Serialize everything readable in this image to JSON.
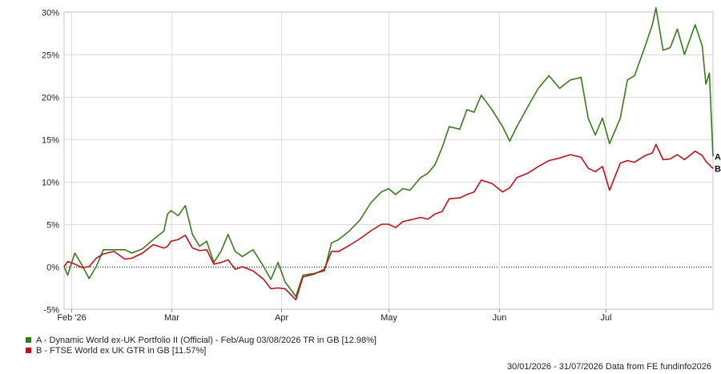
{
  "chart_data": {
    "type": "line",
    "y_unit": "%",
    "ylim": [
      -5,
      30
    ],
    "y_ticks": [
      -5,
      0,
      5,
      10,
      15,
      20,
      25,
      30
    ],
    "y_tick_labels": [
      "-5%",
      "0%",
      "5%",
      "10%",
      "15%",
      "20%",
      "25%",
      "30%"
    ],
    "x_ticks": [
      {
        "label": "Feb '26",
        "date": "2026-02-01"
      },
      {
        "label": "Mar",
        "date": "2026-03-01"
      },
      {
        "label": "Apr",
        "date": "2026-04-01"
      },
      {
        "label": "May",
        "date": "2026-05-01"
      },
      {
        "label": "Jun",
        "date": "2026-06-01"
      },
      {
        "label": "Jul",
        "date": "2026-07-01"
      }
    ],
    "x_range": [
      "2026-01-30",
      "2026-07-31"
    ],
    "grid": true,
    "zero_line": "dotted",
    "legend_placement": "bottom-left",
    "series": [
      {
        "name": "A - Dynamic World ex-UK Portfolio II (Official) - Feb/Aug 03/08/2026 TR in GB [12.98%]",
        "end_label": "A",
        "color": "#3a7a1e",
        "points": [
          [
            "2026-01-30",
            0.0
          ],
          [
            "2026-01-31",
            -1.0
          ],
          [
            "2026-02-02",
            1.6
          ],
          [
            "2026-02-04",
            0.2
          ],
          [
            "2026-02-06",
            -1.4
          ],
          [
            "2026-02-08",
            0.0
          ],
          [
            "2026-02-10",
            2.0
          ],
          [
            "2026-02-13",
            2.0
          ],
          [
            "2026-02-16",
            2.0
          ],
          [
            "2026-02-18",
            1.6
          ],
          [
            "2026-02-21",
            2.1
          ],
          [
            "2026-02-24",
            3.2
          ],
          [
            "2026-02-27",
            4.2
          ],
          [
            "2026-02-28",
            6.2
          ],
          [
            "2026-03-01",
            6.6
          ],
          [
            "2026-03-03",
            6.0
          ],
          [
            "2026-03-05",
            7.2
          ],
          [
            "2026-03-07",
            3.8
          ],
          [
            "2026-03-09",
            2.4
          ],
          [
            "2026-03-11",
            3.0
          ],
          [
            "2026-03-13",
            0.5
          ],
          [
            "2026-03-15",
            1.8
          ],
          [
            "2026-03-17",
            3.8
          ],
          [
            "2026-03-19",
            1.8
          ],
          [
            "2026-03-21",
            1.2
          ],
          [
            "2026-03-24",
            2.0
          ],
          [
            "2026-03-27",
            0.0
          ],
          [
            "2026-03-29",
            -1.5
          ],
          [
            "2026-03-31",
            0.5
          ],
          [
            "2026-04-02",
            -1.8
          ],
          [
            "2026-04-05",
            -3.5
          ],
          [
            "2026-04-07",
            -1.0
          ],
          [
            "2026-04-10",
            -0.8
          ],
          [
            "2026-04-13",
            -0.5
          ],
          [
            "2026-04-15",
            2.8
          ],
          [
            "2026-04-17",
            3.2
          ],
          [
            "2026-04-20",
            4.2
          ],
          [
            "2026-04-23",
            5.5
          ],
          [
            "2026-04-26",
            7.5
          ],
          [
            "2026-04-29",
            8.8
          ],
          [
            "2026-05-01",
            9.2
          ],
          [
            "2026-05-03",
            8.5
          ],
          [
            "2026-05-05",
            9.2
          ],
          [
            "2026-05-07",
            9.0
          ],
          [
            "2026-05-10",
            10.5
          ],
          [
            "2026-05-12",
            11.0
          ],
          [
            "2026-05-14",
            12.0
          ],
          [
            "2026-05-16",
            14.0
          ],
          [
            "2026-05-18",
            16.5
          ],
          [
            "2026-05-21",
            16.2
          ],
          [
            "2026-05-23",
            18.5
          ],
          [
            "2026-05-25",
            18.2
          ],
          [
            "2026-05-27",
            20.2
          ],
          [
            "2026-05-30",
            18.5
          ],
          [
            "2026-06-02",
            16.5
          ],
          [
            "2026-06-04",
            14.8
          ],
          [
            "2026-06-06",
            16.5
          ],
          [
            "2026-06-09",
            18.8
          ],
          [
            "2026-06-12",
            21.0
          ],
          [
            "2026-06-15",
            22.5
          ],
          [
            "2026-06-18",
            21.0
          ],
          [
            "2026-06-21",
            22.0
          ],
          [
            "2026-06-24",
            22.3
          ],
          [
            "2026-06-26",
            17.5
          ],
          [
            "2026-06-28",
            15.5
          ],
          [
            "2026-06-30",
            17.5
          ],
          [
            "2026-07-02",
            14.5
          ],
          [
            "2026-07-05",
            17.5
          ],
          [
            "2026-07-07",
            22.0
          ],
          [
            "2026-07-09",
            22.5
          ],
          [
            "2026-07-12",
            26.0
          ],
          [
            "2026-07-14",
            28.5
          ],
          [
            "2026-07-15",
            30.5
          ],
          [
            "2026-07-17",
            25.5
          ],
          [
            "2026-07-19",
            25.8
          ],
          [
            "2026-07-21",
            28.0
          ],
          [
            "2026-07-23",
            25.0
          ],
          [
            "2026-07-26",
            28.5
          ],
          [
            "2026-07-28",
            26.0
          ],
          [
            "2026-07-29",
            21.5
          ],
          [
            "2026-07-30",
            22.8
          ],
          [
            "2026-07-31",
            12.98
          ]
        ]
      },
      {
        "name": "B - FTSE World ex UK GTR in GB [11.57%]",
        "end_label": "B",
        "color": "#c0111b",
        "points": [
          [
            "2026-01-30",
            0.0
          ],
          [
            "2026-01-31",
            0.6
          ],
          [
            "2026-02-02",
            0.3
          ],
          [
            "2026-02-04",
            -0.1
          ],
          [
            "2026-02-06",
            0.0
          ],
          [
            "2026-02-08",
            1.0
          ],
          [
            "2026-02-10",
            1.5
          ],
          [
            "2026-02-13",
            1.8
          ],
          [
            "2026-02-16",
            0.9
          ],
          [
            "2026-02-18",
            1.0
          ],
          [
            "2026-02-21",
            1.6
          ],
          [
            "2026-02-24",
            2.6
          ],
          [
            "2026-02-27",
            2.2
          ],
          [
            "2026-02-28",
            2.4
          ],
          [
            "2026-03-01",
            3.0
          ],
          [
            "2026-03-03",
            3.2
          ],
          [
            "2026-03-05",
            3.7
          ],
          [
            "2026-03-07",
            2.2
          ],
          [
            "2026-03-09",
            1.9
          ],
          [
            "2026-03-11",
            2.0
          ],
          [
            "2026-03-13",
            0.3
          ],
          [
            "2026-03-15",
            0.5
          ],
          [
            "2026-03-17",
            0.8
          ],
          [
            "2026-03-19",
            -0.3
          ],
          [
            "2026-03-21",
            0.0
          ],
          [
            "2026-03-24",
            -0.5
          ],
          [
            "2026-03-27",
            -1.5
          ],
          [
            "2026-03-29",
            -2.6
          ],
          [
            "2026-03-31",
            -2.5
          ],
          [
            "2026-04-02",
            -2.6
          ],
          [
            "2026-04-05",
            -3.9
          ],
          [
            "2026-04-07",
            -1.2
          ],
          [
            "2026-04-10",
            -0.9
          ],
          [
            "2026-04-13",
            -0.3
          ],
          [
            "2026-04-15",
            1.8
          ],
          [
            "2026-04-17",
            1.8
          ],
          [
            "2026-04-20",
            2.5
          ],
          [
            "2026-04-23",
            3.3
          ],
          [
            "2026-04-26",
            4.2
          ],
          [
            "2026-04-29",
            5.0
          ],
          [
            "2026-05-01",
            5.0
          ],
          [
            "2026-05-03",
            4.6
          ],
          [
            "2026-05-05",
            5.3
          ],
          [
            "2026-05-07",
            5.5
          ],
          [
            "2026-05-10",
            5.8
          ],
          [
            "2026-05-12",
            5.6
          ],
          [
            "2026-05-14",
            6.2
          ],
          [
            "2026-05-16",
            6.5
          ],
          [
            "2026-05-18",
            8.0
          ],
          [
            "2026-05-21",
            8.1
          ],
          [
            "2026-05-23",
            8.5
          ],
          [
            "2026-05-25",
            8.8
          ],
          [
            "2026-05-27",
            10.2
          ],
          [
            "2026-05-30",
            9.8
          ],
          [
            "2026-06-02",
            8.8
          ],
          [
            "2026-06-04",
            9.3
          ],
          [
            "2026-06-06",
            10.5
          ],
          [
            "2026-06-09",
            11.0
          ],
          [
            "2026-06-12",
            11.8
          ],
          [
            "2026-06-15",
            12.5
          ],
          [
            "2026-06-18",
            12.8
          ],
          [
            "2026-06-21",
            13.2
          ],
          [
            "2026-06-24",
            12.9
          ],
          [
            "2026-06-26",
            11.6
          ],
          [
            "2026-06-28",
            11.2
          ],
          [
            "2026-06-30",
            11.8
          ],
          [
            "2026-07-02",
            9.0
          ],
          [
            "2026-07-05",
            12.2
          ],
          [
            "2026-07-07",
            12.5
          ],
          [
            "2026-07-09",
            12.3
          ],
          [
            "2026-07-12",
            13.1
          ],
          [
            "2026-07-14",
            13.4
          ],
          [
            "2026-07-15",
            14.4
          ],
          [
            "2026-07-17",
            12.6
          ],
          [
            "2026-07-19",
            12.7
          ],
          [
            "2026-07-21",
            13.2
          ],
          [
            "2026-07-23",
            12.6
          ],
          [
            "2026-07-26",
            13.6
          ],
          [
            "2026-07-28",
            13.1
          ],
          [
            "2026-07-29",
            12.4
          ],
          [
            "2026-07-30",
            12.0
          ],
          [
            "2026-07-31",
            11.57
          ]
        ]
      }
    ]
  },
  "legend": {
    "items": [
      {
        "label": "A - Dynamic World ex-UK Portfolio II (Official) - Feb/Aug 03/08/2026 TR in GB [12.98%]",
        "color": "#3a7a1e"
      },
      {
        "label": "B - FTSE World ex UK GTR in GB [11.57%]",
        "color": "#c0111b"
      }
    ]
  },
  "footer": {
    "text": "30/01/2026 - 31/07/2026 Data from FE fundinfo2026"
  }
}
